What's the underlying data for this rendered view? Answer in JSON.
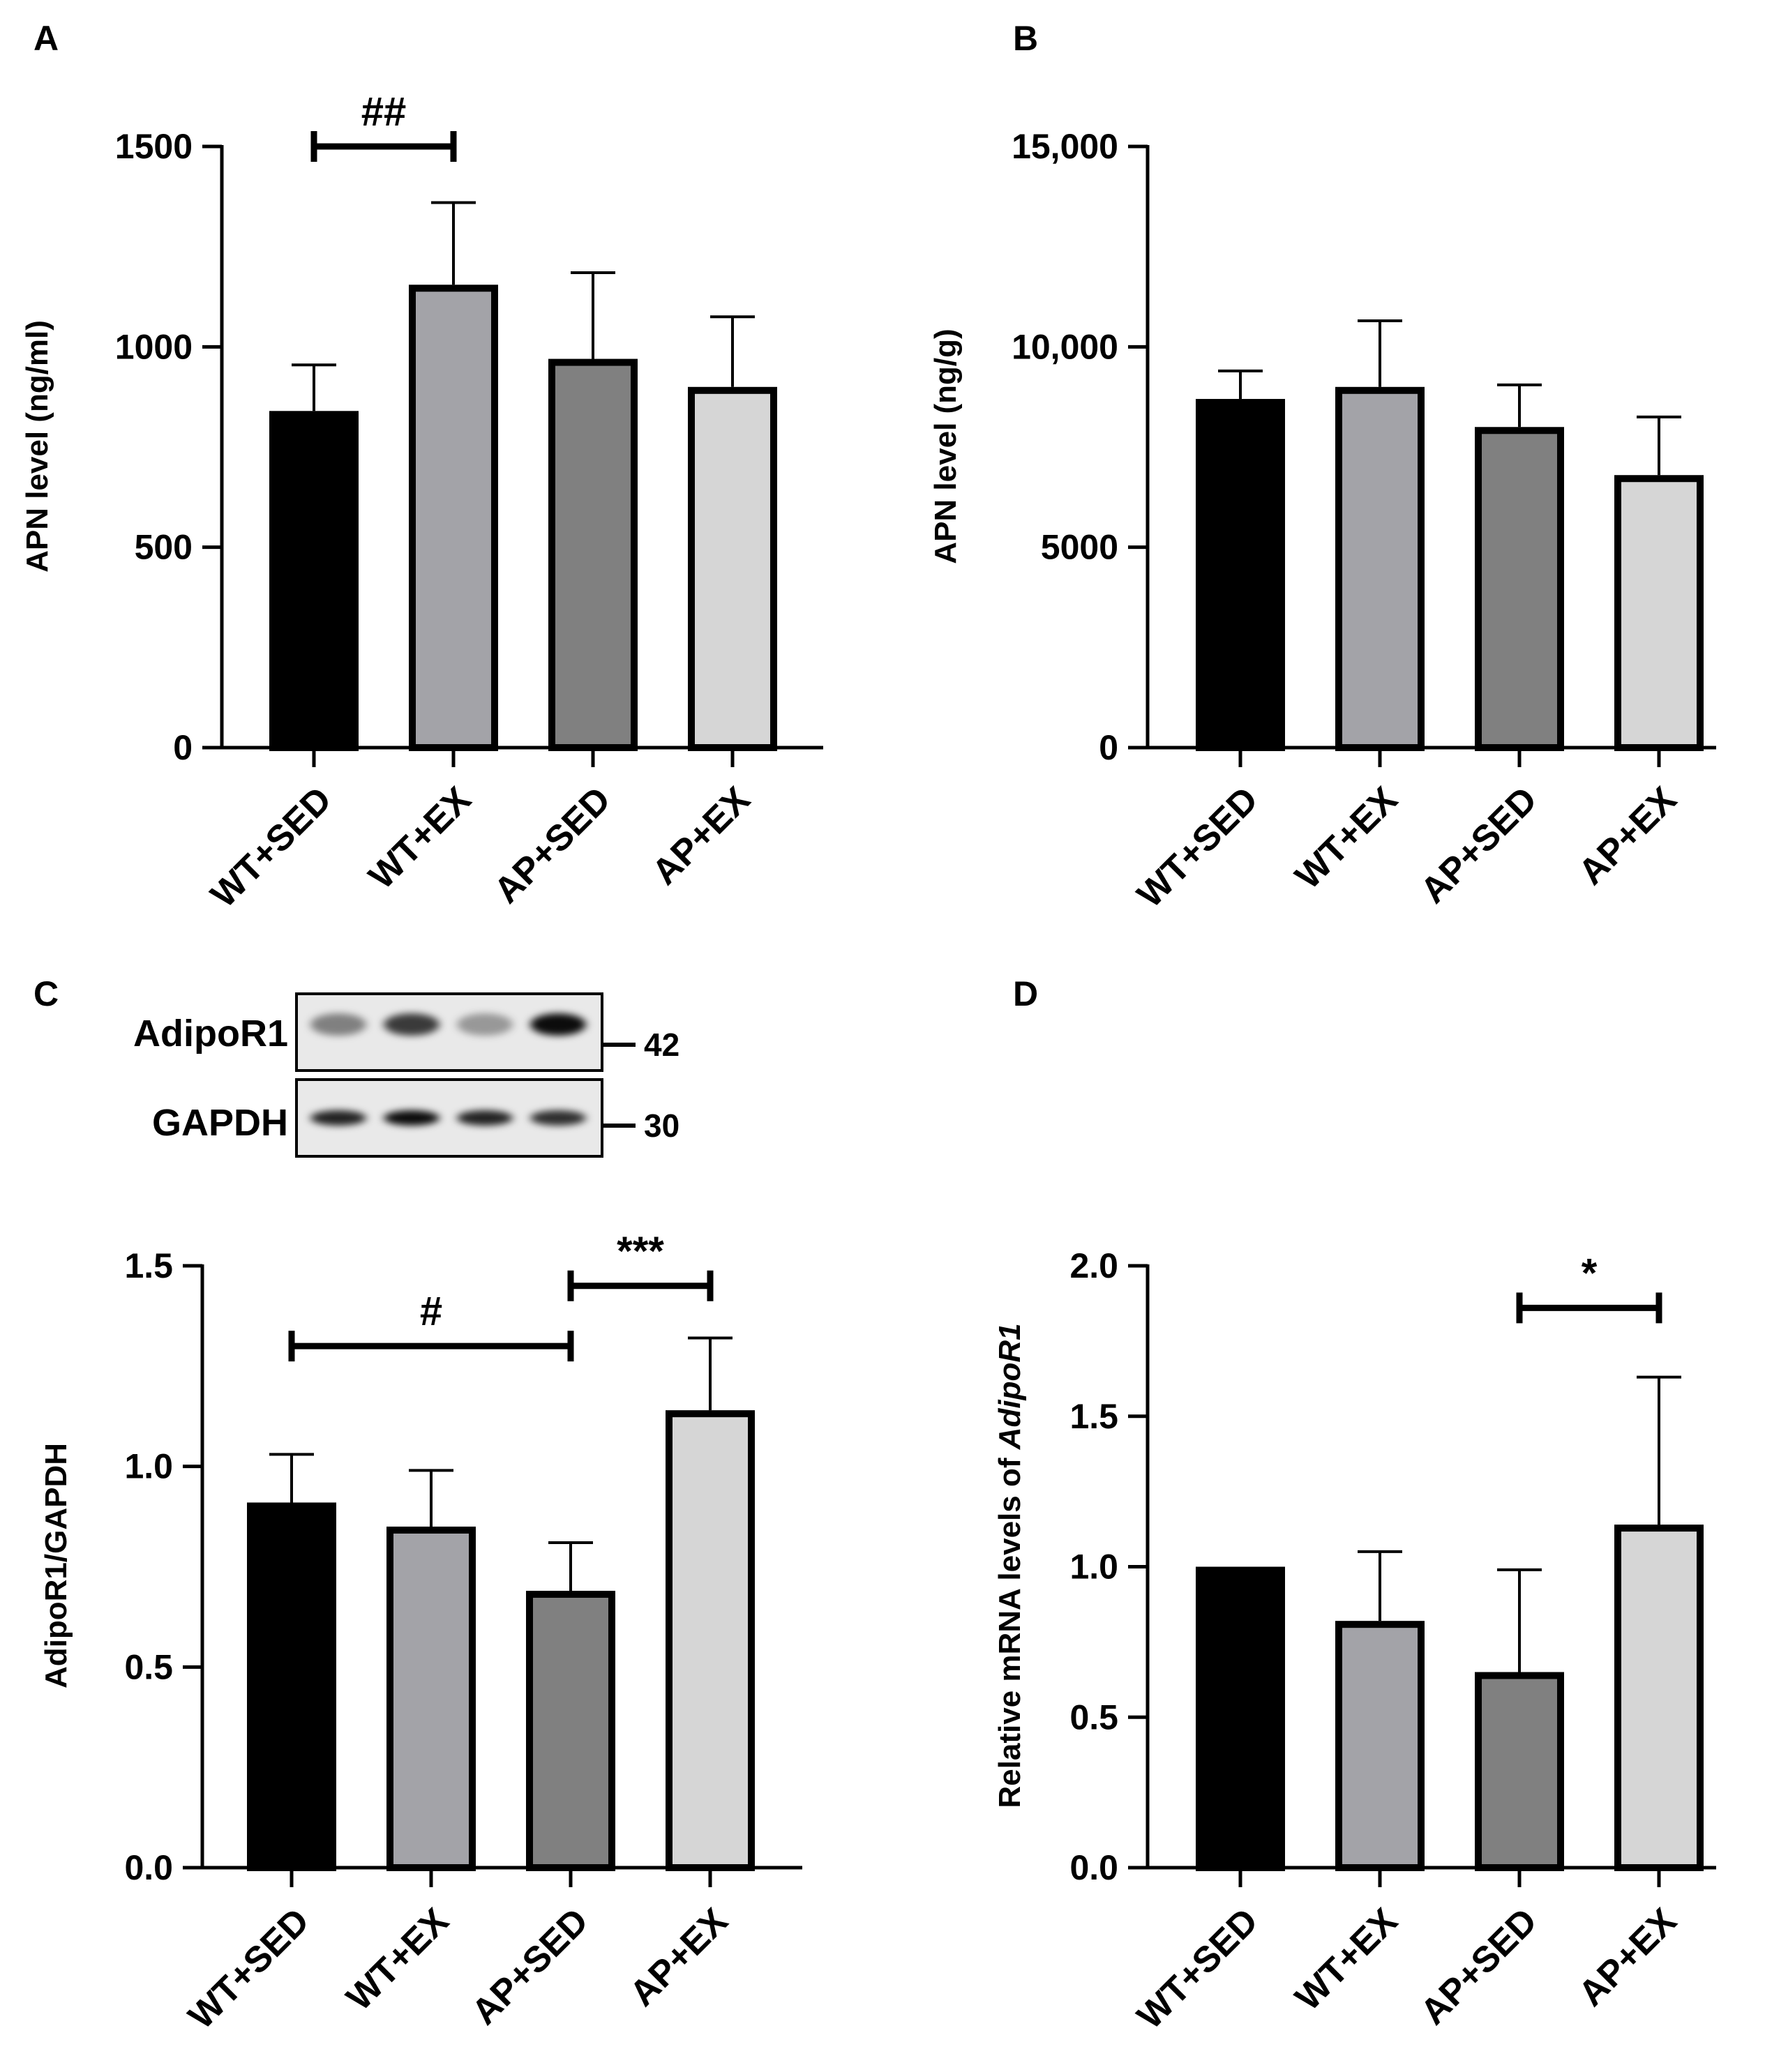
{
  "colors": {
    "WT+SED": "#000000",
    "WT+EX": "#a3a3a8",
    "AP+SED": "#808080",
    "AP+EX": "#d6d6d6",
    "axis": "#000000"
  },
  "chart_data": [
    {
      "panel": "A",
      "type": "bar",
      "categories": [
        "WT+SED",
        "WT+EX",
        "AP+SED",
        "AP+EX"
      ],
      "values": [
        840,
        1155,
        970,
        900
      ],
      "errors": [
        115,
        205,
        215,
        175
      ],
      "ylabel": "APN level (ng/ml)",
      "ylim": [
        0,
        1500
      ],
      "yticks": [
        0,
        500,
        1000,
        1500
      ],
      "ytick_labels": [
        "0",
        "500",
        "1000",
        "1500"
      ],
      "grid": false,
      "significance": [
        {
          "from": 0,
          "to": 1,
          "label": "##",
          "y": 1500
        }
      ]
    },
    {
      "panel": "B",
      "type": "bar",
      "categories": [
        "WT+SED",
        "WT+EX",
        "AP+SED",
        "AP+EX"
      ],
      "values": [
        8700,
        9000,
        8000,
        6800
      ],
      "errors": [
        700,
        1650,
        1050,
        1450
      ],
      "ylabel": "APN level (ng/g)",
      "ylim": [
        0,
        15000
      ],
      "yticks": [
        0,
        5000,
        10000,
        15000
      ],
      "ytick_labels": [
        "0",
        "5000",
        "10,000",
        "15,000"
      ],
      "grid": false,
      "significance": []
    },
    {
      "panel": "C",
      "type": "bar",
      "categories": [
        "WT+SED",
        "WT+EX",
        "AP+SED",
        "AP+EX"
      ],
      "values": [
        0.91,
        0.85,
        0.69,
        1.14
      ],
      "errors": [
        0.12,
        0.14,
        0.12,
        0.18
      ],
      "ylabel": "AdipoR1/GAPDH",
      "ylim": [
        0,
        1.5
      ],
      "yticks": [
        0,
        0.5,
        1.0,
        1.5
      ],
      "ytick_labels": [
        "0.0",
        "0.5",
        "1.0",
        "1.5"
      ],
      "grid": false,
      "significance": [
        {
          "from": 0,
          "to": 2,
          "label": "#",
          "y": 1.3
        },
        {
          "from": 2,
          "to": 3,
          "label": "***",
          "y": 1.45
        }
      ]
    },
    {
      "panel": "D",
      "type": "bar",
      "categories": [
        "WT+SED",
        "WT+EX",
        "AP+SED",
        "AP+EX"
      ],
      "values": [
        1.0,
        0.82,
        0.65,
        1.14
      ],
      "errors": [
        0.0,
        0.23,
        0.34,
        0.49
      ],
      "ylabel_prefix": "Relative mRNA levels of ",
      "ylabel_italic": "AdipoR1",
      "ylim": [
        0,
        2.0
      ],
      "yticks": [
        0,
        0.5,
        1.0,
        1.5,
        2.0
      ],
      "ytick_labels": [
        "0.0",
        "0.5",
        "1.0",
        "1.5",
        "2.0"
      ],
      "grid": false,
      "significance": [
        {
          "from": 2,
          "to": 3,
          "label": "*",
          "y": 1.86
        }
      ]
    }
  ],
  "blot": {
    "rows": [
      {
        "label": "AdipoR1",
        "mw": "42",
        "intensity": [
          0.45,
          0.75,
          0.35,
          0.95
        ]
      },
      {
        "label": "GAPDH",
        "mw": "30",
        "intensity": [
          0.85,
          0.95,
          0.85,
          0.8
        ]
      }
    ]
  }
}
